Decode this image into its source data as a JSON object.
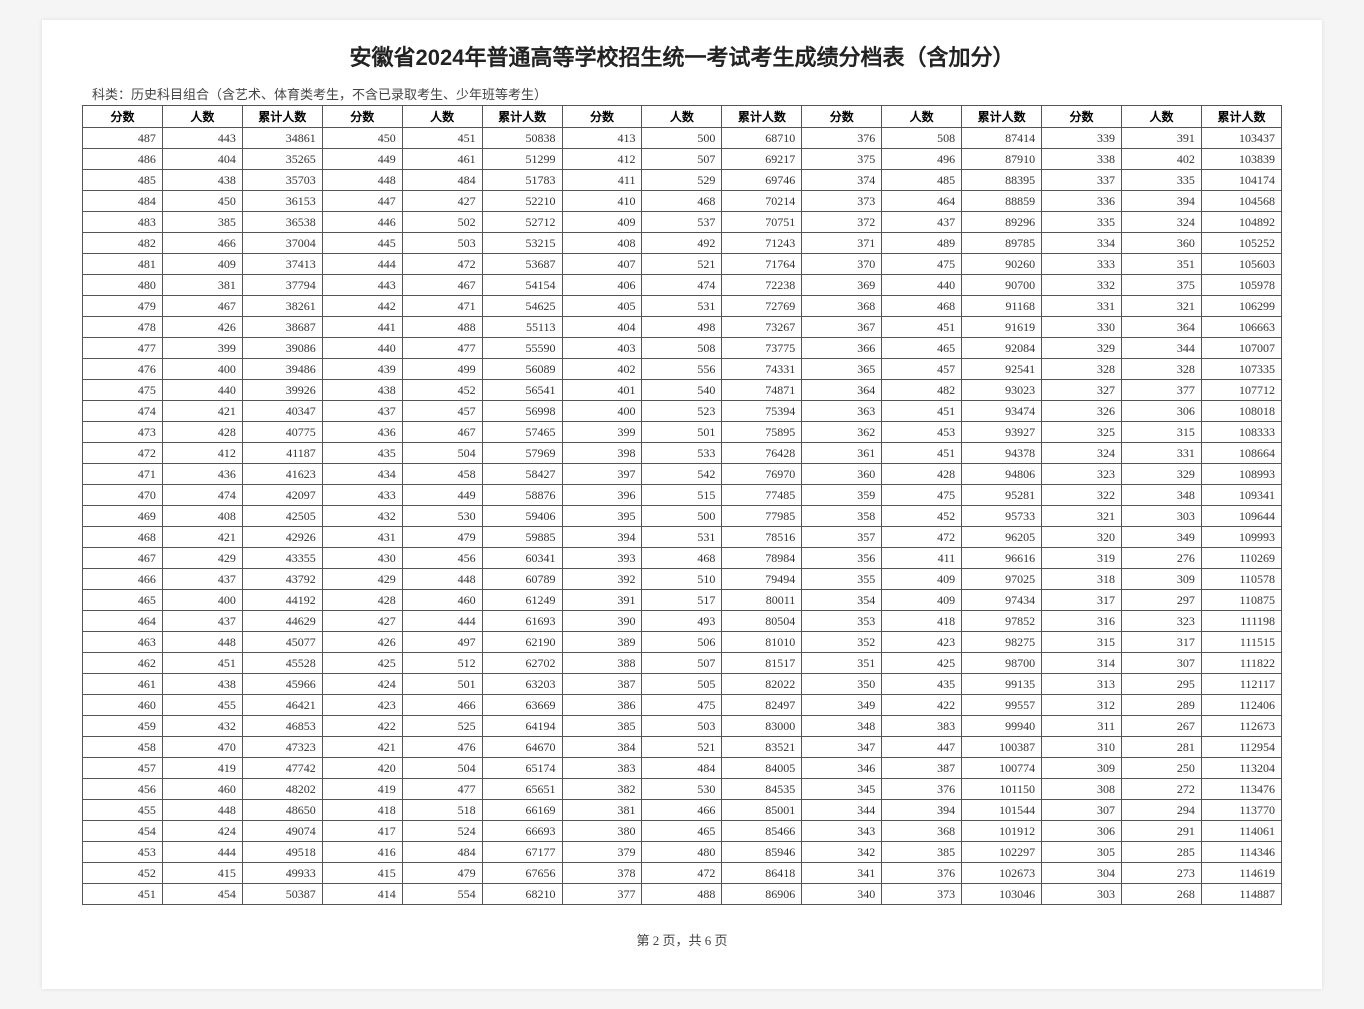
{
  "title": "安徽省2024年普通高等学校招生统一考试考生成绩分档表（含加分）",
  "subtitle": "科类：历史科目组合（含艺术、体育类考生，不含已录取考生、少年班等考生）",
  "columns": [
    "分数",
    "人数",
    "累计人数",
    "分数",
    "人数",
    "累计人数",
    "分数",
    "人数",
    "累计人数",
    "分数",
    "人数",
    "累计人数",
    "分数",
    "人数",
    "累计人数"
  ],
  "rows": [
    [
      487,
      443,
      34861,
      450,
      451,
      50838,
      413,
      500,
      68710,
      376,
      508,
      87414,
      339,
      391,
      103437
    ],
    [
      486,
      404,
      35265,
      449,
      461,
      51299,
      412,
      507,
      69217,
      375,
      496,
      87910,
      338,
      402,
      103839
    ],
    [
      485,
      438,
      35703,
      448,
      484,
      51783,
      411,
      529,
      69746,
      374,
      485,
      88395,
      337,
      335,
      104174
    ],
    [
      484,
      450,
      36153,
      447,
      427,
      52210,
      410,
      468,
      70214,
      373,
      464,
      88859,
      336,
      394,
      104568
    ],
    [
      483,
      385,
      36538,
      446,
      502,
      52712,
      409,
      537,
      70751,
      372,
      437,
      89296,
      335,
      324,
      104892
    ],
    [
      482,
      466,
      37004,
      445,
      503,
      53215,
      408,
      492,
      71243,
      371,
      489,
      89785,
      334,
      360,
      105252
    ],
    [
      481,
      409,
      37413,
      444,
      472,
      53687,
      407,
      521,
      71764,
      370,
      475,
      90260,
      333,
      351,
      105603
    ],
    [
      480,
      381,
      37794,
      443,
      467,
      54154,
      406,
      474,
      72238,
      369,
      440,
      90700,
      332,
      375,
      105978
    ],
    [
      479,
      467,
      38261,
      442,
      471,
      54625,
      405,
      531,
      72769,
      368,
      468,
      91168,
      331,
      321,
      106299
    ],
    [
      478,
      426,
      38687,
      441,
      488,
      55113,
      404,
      498,
      73267,
      367,
      451,
      91619,
      330,
      364,
      106663
    ],
    [
      477,
      399,
      39086,
      440,
      477,
      55590,
      403,
      508,
      73775,
      366,
      465,
      92084,
      329,
      344,
      107007
    ],
    [
      476,
      400,
      39486,
      439,
      499,
      56089,
      402,
      556,
      74331,
      365,
      457,
      92541,
      328,
      328,
      107335
    ],
    [
      475,
      440,
      39926,
      438,
      452,
      56541,
      401,
      540,
      74871,
      364,
      482,
      93023,
      327,
      377,
      107712
    ],
    [
      474,
      421,
      40347,
      437,
      457,
      56998,
      400,
      523,
      75394,
      363,
      451,
      93474,
      326,
      306,
      108018
    ],
    [
      473,
      428,
      40775,
      436,
      467,
      57465,
      399,
      501,
      75895,
      362,
      453,
      93927,
      325,
      315,
      108333
    ],
    [
      472,
      412,
      41187,
      435,
      504,
      57969,
      398,
      533,
      76428,
      361,
      451,
      94378,
      324,
      331,
      108664
    ],
    [
      471,
      436,
      41623,
      434,
      458,
      58427,
      397,
      542,
      76970,
      360,
      428,
      94806,
      323,
      329,
      108993
    ],
    [
      470,
      474,
      42097,
      433,
      449,
      58876,
      396,
      515,
      77485,
      359,
      475,
      95281,
      322,
      348,
      109341
    ],
    [
      469,
      408,
      42505,
      432,
      530,
      59406,
      395,
      500,
      77985,
      358,
      452,
      95733,
      321,
      303,
      109644
    ],
    [
      468,
      421,
      42926,
      431,
      479,
      59885,
      394,
      531,
      78516,
      357,
      472,
      96205,
      320,
      349,
      109993
    ],
    [
      467,
      429,
      43355,
      430,
      456,
      60341,
      393,
      468,
      78984,
      356,
      411,
      96616,
      319,
      276,
      110269
    ],
    [
      466,
      437,
      43792,
      429,
      448,
      60789,
      392,
      510,
      79494,
      355,
      409,
      97025,
      318,
      309,
      110578
    ],
    [
      465,
      400,
      44192,
      428,
      460,
      61249,
      391,
      517,
      80011,
      354,
      409,
      97434,
      317,
      297,
      110875
    ],
    [
      464,
      437,
      44629,
      427,
      444,
      61693,
      390,
      493,
      80504,
      353,
      418,
      97852,
      316,
      323,
      111198
    ],
    [
      463,
      448,
      45077,
      426,
      497,
      62190,
      389,
      506,
      81010,
      352,
      423,
      98275,
      315,
      317,
      111515
    ],
    [
      462,
      451,
      45528,
      425,
      512,
      62702,
      388,
      507,
      81517,
      351,
      425,
      98700,
      314,
      307,
      111822
    ],
    [
      461,
      438,
      45966,
      424,
      501,
      63203,
      387,
      505,
      82022,
      350,
      435,
      99135,
      313,
      295,
      112117
    ],
    [
      460,
      455,
      46421,
      423,
      466,
      63669,
      386,
      475,
      82497,
      349,
      422,
      99557,
      312,
      289,
      112406
    ],
    [
      459,
      432,
      46853,
      422,
      525,
      64194,
      385,
      503,
      83000,
      348,
      383,
      99940,
      311,
      267,
      112673
    ],
    [
      458,
      470,
      47323,
      421,
      476,
      64670,
      384,
      521,
      83521,
      347,
      447,
      100387,
      310,
      281,
      112954
    ],
    [
      457,
      419,
      47742,
      420,
      504,
      65174,
      383,
      484,
      84005,
      346,
      387,
      100774,
      309,
      250,
      113204
    ],
    [
      456,
      460,
      48202,
      419,
      477,
      65651,
      382,
      530,
      84535,
      345,
      376,
      101150,
      308,
      272,
      113476
    ],
    [
      455,
      448,
      48650,
      418,
      518,
      66169,
      381,
      466,
      85001,
      344,
      394,
      101544,
      307,
      294,
      113770
    ],
    [
      454,
      424,
      49074,
      417,
      524,
      66693,
      380,
      465,
      85466,
      343,
      368,
      101912,
      306,
      291,
      114061
    ],
    [
      453,
      444,
      49518,
      416,
      484,
      67177,
      379,
      480,
      85946,
      342,
      385,
      102297,
      305,
      285,
      114346
    ],
    [
      452,
      415,
      49933,
      415,
      479,
      67656,
      378,
      472,
      86418,
      341,
      376,
      102673,
      304,
      273,
      114619
    ],
    [
      451,
      454,
      50387,
      414,
      554,
      68210,
      377,
      488,
      86906,
      340,
      373,
      103046,
      303,
      268,
      114887
    ]
  ],
  "footer": "第 2 页，共 6 页"
}
